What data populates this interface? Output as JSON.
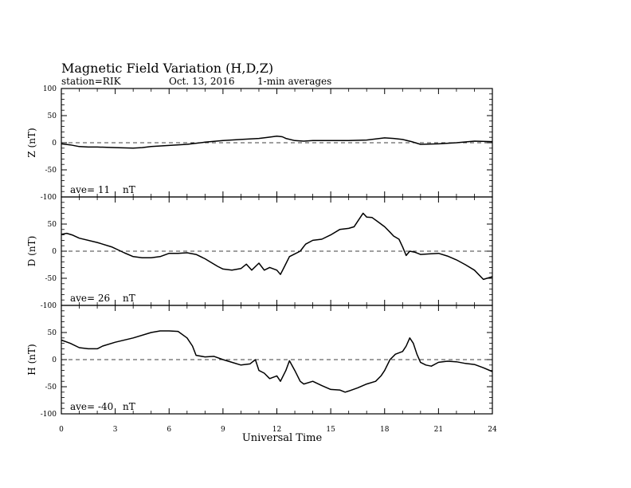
{
  "chart_data": {
    "type": "line",
    "title": "Magnetic Field Variation (H,D,Z)",
    "subtitle": {
      "station": "station=RIK",
      "date": "Oct. 13, 2016",
      "averaging": "1-min averages"
    },
    "xlabel": "Universal Time",
    "xlim": [
      0,
      24
    ],
    "x_ticks": [
      "0",
      "3",
      "6",
      "9",
      "12",
      "15",
      "18",
      "21",
      "24"
    ],
    "ylim": [
      -100,
      100
    ],
    "y_ticks": [
      "100",
      "50",
      "0",
      "-50",
      "-100"
    ],
    "zero_reference_line": "dashed",
    "panels": [
      {
        "component": "Z",
        "ylabel": "Z (nT)",
        "ave_text": "ave= 11",
        "unit": "nT",
        "points": [
          [
            0,
            -2
          ],
          [
            0.5,
            -4
          ],
          [
            1,
            -7
          ],
          [
            1.5,
            -8
          ],
          [
            2,
            -8
          ],
          [
            3,
            -9
          ],
          [
            4,
            -10
          ],
          [
            4.5,
            -9
          ],
          [
            5,
            -7
          ],
          [
            6,
            -5
          ],
          [
            7,
            -3
          ],
          [
            8,
            1
          ],
          [
            9,
            4
          ],
          [
            10,
            6
          ],
          [
            11,
            8
          ],
          [
            11.5,
            10
          ],
          [
            12,
            12
          ],
          [
            12.3,
            11
          ],
          [
            12.5,
            8
          ],
          [
            13,
            4
          ],
          [
            13.5,
            3
          ],
          [
            14,
            4
          ],
          [
            15,
            4
          ],
          [
            16,
            4
          ],
          [
            17,
            5
          ],
          [
            18,
            9
          ],
          [
            18.5,
            8
          ],
          [
            19,
            6
          ],
          [
            19.5,
            2
          ],
          [
            20,
            -3
          ],
          [
            21,
            -2
          ],
          [
            22,
            0
          ],
          [
            23,
            3
          ],
          [
            24,
            2
          ]
        ]
      },
      {
        "component": "D",
        "ylabel": "D (nT)",
        "ave_text": "ave= 26",
        "unit": "nT",
        "points": [
          [
            0,
            31
          ],
          [
            0.3,
            33
          ],
          [
            0.6,
            30
          ],
          [
            1,
            24
          ],
          [
            2,
            16
          ],
          [
            2.8,
            8
          ],
          [
            3.5,
            -3
          ],
          [
            4,
            -10
          ],
          [
            4.5,
            -12
          ],
          [
            5,
            -12
          ],
          [
            5.5,
            -10
          ],
          [
            6,
            -4
          ],
          [
            6.5,
            -4
          ],
          [
            7,
            -3
          ],
          [
            7.5,
            -6
          ],
          [
            8,
            -14
          ],
          [
            8.3,
            -20
          ],
          [
            8.7,
            -28
          ],
          [
            9,
            -33
          ],
          [
            9.5,
            -35
          ],
          [
            10,
            -32
          ],
          [
            10.3,
            -24
          ],
          [
            10.6,
            -35
          ],
          [
            11,
            -22
          ],
          [
            11.3,
            -35
          ],
          [
            11.6,
            -30
          ],
          [
            12,
            -35
          ],
          [
            12.2,
            -43
          ],
          [
            12.4,
            -30
          ],
          [
            12.7,
            -10
          ],
          [
            13,
            -5
          ],
          [
            13.3,
            0
          ],
          [
            13.6,
            13
          ],
          [
            14,
            20
          ],
          [
            14.5,
            22
          ],
          [
            15,
            30
          ],
          [
            15.5,
            40
          ],
          [
            16,
            42
          ],
          [
            16.3,
            45
          ],
          [
            16.6,
            60
          ],
          [
            16.8,
            70
          ],
          [
            17,
            63
          ],
          [
            17.3,
            62
          ],
          [
            17.6,
            55
          ],
          [
            18,
            45
          ],
          [
            18.3,
            35
          ],
          [
            18.5,
            28
          ],
          [
            18.8,
            22
          ],
          [
            19,
            8
          ],
          [
            19.2,
            -8
          ],
          [
            19.4,
            0
          ],
          [
            19.7,
            -2
          ],
          [
            20,
            -6
          ],
          [
            20.5,
            -5
          ],
          [
            21,
            -4
          ],
          [
            21.5,
            -9
          ],
          [
            22,
            -16
          ],
          [
            22.5,
            -25
          ],
          [
            23,
            -35
          ],
          [
            23.5,
            -52
          ],
          [
            24,
            -47
          ]
        ]
      },
      {
        "component": "H",
        "ylabel": "H (nT)",
        "ave_text": "ave= -40",
        "unit": "nT",
        "points": [
          [
            0,
            36
          ],
          [
            0.5,
            30
          ],
          [
            1,
            22
          ],
          [
            1.5,
            20
          ],
          [
            2,
            20
          ],
          [
            2.3,
            25
          ],
          [
            3,
            32
          ],
          [
            4,
            40
          ],
          [
            5,
            50
          ],
          [
            5.5,
            53
          ],
          [
            6,
            53
          ],
          [
            6.5,
            52
          ],
          [
            7,
            40
          ],
          [
            7.3,
            25
          ],
          [
            7.5,
            8
          ],
          [
            8,
            5
          ],
          [
            8.5,
            6
          ],
          [
            9,
            0
          ],
          [
            9.5,
            -5
          ],
          [
            10,
            -10
          ],
          [
            10.5,
            -8
          ],
          [
            10.8,
            0
          ],
          [
            11,
            -20
          ],
          [
            11.3,
            -25
          ],
          [
            11.6,
            -35
          ],
          [
            12,
            -30
          ],
          [
            12.2,
            -40
          ],
          [
            12.5,
            -20
          ],
          [
            12.7,
            -2
          ],
          [
            13,
            -20
          ],
          [
            13.3,
            -40
          ],
          [
            13.5,
            -45
          ],
          [
            14,
            -40
          ],
          [
            14.5,
            -48
          ],
          [
            15,
            -55
          ],
          [
            15.5,
            -56
          ],
          [
            15.8,
            -60
          ],
          [
            16,
            -58
          ],
          [
            16.5,
            -52
          ],
          [
            17,
            -45
          ],
          [
            17.5,
            -40
          ],
          [
            17.8,
            -30
          ],
          [
            18,
            -20
          ],
          [
            18.3,
            0
          ],
          [
            18.6,
            10
          ],
          [
            19,
            15
          ],
          [
            19.2,
            25
          ],
          [
            19.4,
            40
          ],
          [
            19.6,
            30
          ],
          [
            19.8,
            10
          ],
          [
            20,
            -5
          ],
          [
            20.3,
            -10
          ],
          [
            20.6,
            -12
          ],
          [
            21,
            -5
          ],
          [
            21.5,
            -3
          ],
          [
            22,
            -4
          ],
          [
            22.5,
            -7
          ],
          [
            23,
            -9
          ],
          [
            23.5,
            -15
          ],
          [
            24,
            -22
          ]
        ]
      }
    ]
  }
}
